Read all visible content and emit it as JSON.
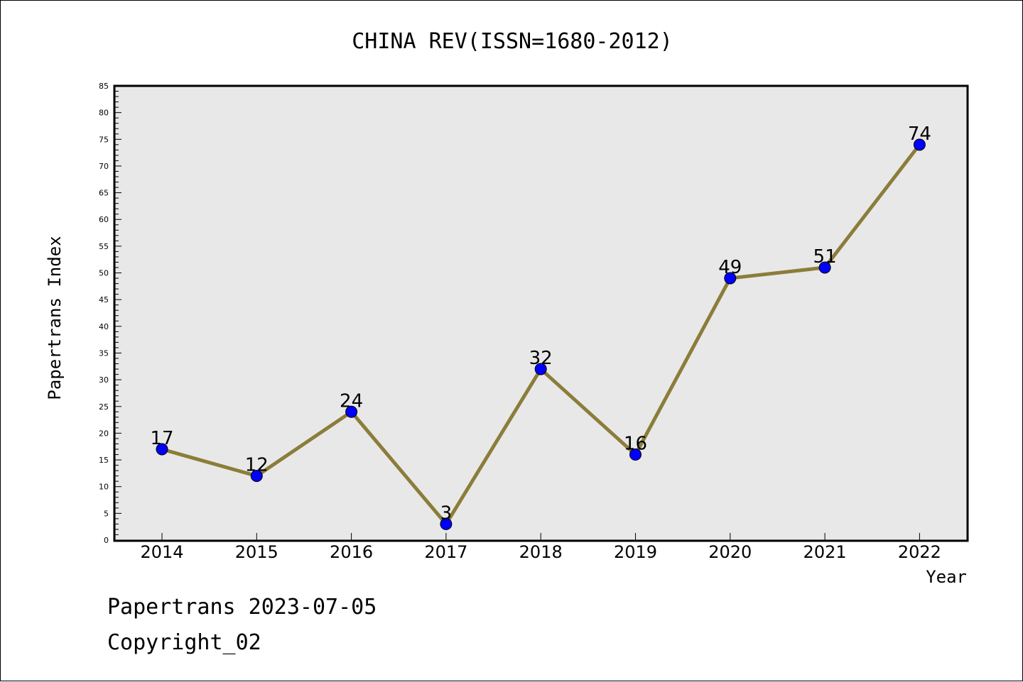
{
  "chart_data": {
    "type": "line",
    "title": "CHINA REV(ISSN=1680-2012)",
    "xlabel": "Year",
    "ylabel": "Papertrans Index",
    "categories": [
      "2014",
      "2015",
      "2016",
      "2017",
      "2018",
      "2019",
      "2020",
      "2021",
      "2022"
    ],
    "values": [
      17,
      12,
      24,
      3,
      32,
      16,
      49,
      51,
      74
    ],
    "ylim": [
      0,
      85
    ],
    "ytick_step": 5,
    "grid": false,
    "line_color": "#8B7D3A",
    "marker_color": "#0000FF",
    "plot_background": "#E8E8E8"
  },
  "footer": {
    "line1": "Papertrans 2023-07-05",
    "line2": "Copyright_02"
  }
}
